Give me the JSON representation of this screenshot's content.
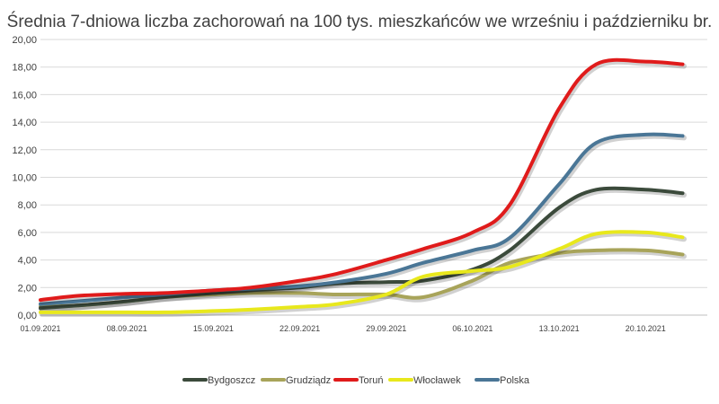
{
  "chart_data": {
    "type": "line",
    "title": "Średnia 7-dniowa liczba zachorowań na 100 tys. mieszkańców we wrześniu i październiku br.",
    "xlabel": "",
    "ylabel": "",
    "ylim": [
      0,
      20
    ],
    "yticks": [
      "0,00",
      "2,00",
      "4,00",
      "6,00",
      "8,00",
      "10,00",
      "12,00",
      "14,00",
      "16,00",
      "18,00",
      "20,00"
    ],
    "xticks": [
      "01.09.2021",
      "08.09.2021",
      "15.09.2021",
      "22.09.2021",
      "29.09.2021",
      "06.10.2021",
      "13.10.2021",
      "20.10.2021"
    ],
    "xtick_days": [
      0,
      7,
      14,
      21,
      28,
      35,
      42,
      49
    ],
    "x_days": [
      0,
      3,
      7,
      10,
      14,
      17,
      21,
      24,
      28,
      31,
      35,
      38,
      42,
      45,
      49,
      52
    ],
    "grid": true,
    "legend_position": "bottom",
    "series": [
      {
        "name": "Bydgoszcz",
        "color": "#3b4a3b",
        "values": [
          0.5,
          0.7,
          1.0,
          1.3,
          1.6,
          1.8,
          2.0,
          2.3,
          2.4,
          2.5,
          3.3,
          4.7,
          7.8,
          9.1,
          9.1,
          8.85
        ]
      },
      {
        "name": "Grudziądz",
        "color": "#a8a45a",
        "values": [
          0.6,
          0.7,
          1.0,
          1.3,
          1.5,
          1.6,
          1.6,
          1.5,
          1.5,
          1.3,
          2.5,
          3.8,
          4.5,
          4.7,
          4.7,
          4.4
        ]
      },
      {
        "name": "Toruń",
        "color": "#e01b1b",
        "values": [
          1.1,
          1.4,
          1.55,
          1.6,
          1.8,
          2.0,
          2.5,
          3.0,
          4.0,
          4.8,
          6.0,
          8.0,
          15.0,
          18.2,
          18.4,
          18.2
        ]
      },
      {
        "name": "Włocławek",
        "color": "#e8e81c",
        "values": [
          0.2,
          0.2,
          0.2,
          0.2,
          0.3,
          0.4,
          0.6,
          0.8,
          1.5,
          2.8,
          3.2,
          3.5,
          4.8,
          5.9,
          6.0,
          5.65
        ]
      },
      {
        "name": "Polska",
        "color": "#4a7696",
        "values": [
          0.8,
          1.0,
          1.3,
          1.5,
          1.8,
          1.9,
          2.1,
          2.4,
          3.0,
          3.8,
          4.7,
          5.6,
          9.5,
          12.5,
          13.1,
          13.0
        ]
      }
    ]
  }
}
